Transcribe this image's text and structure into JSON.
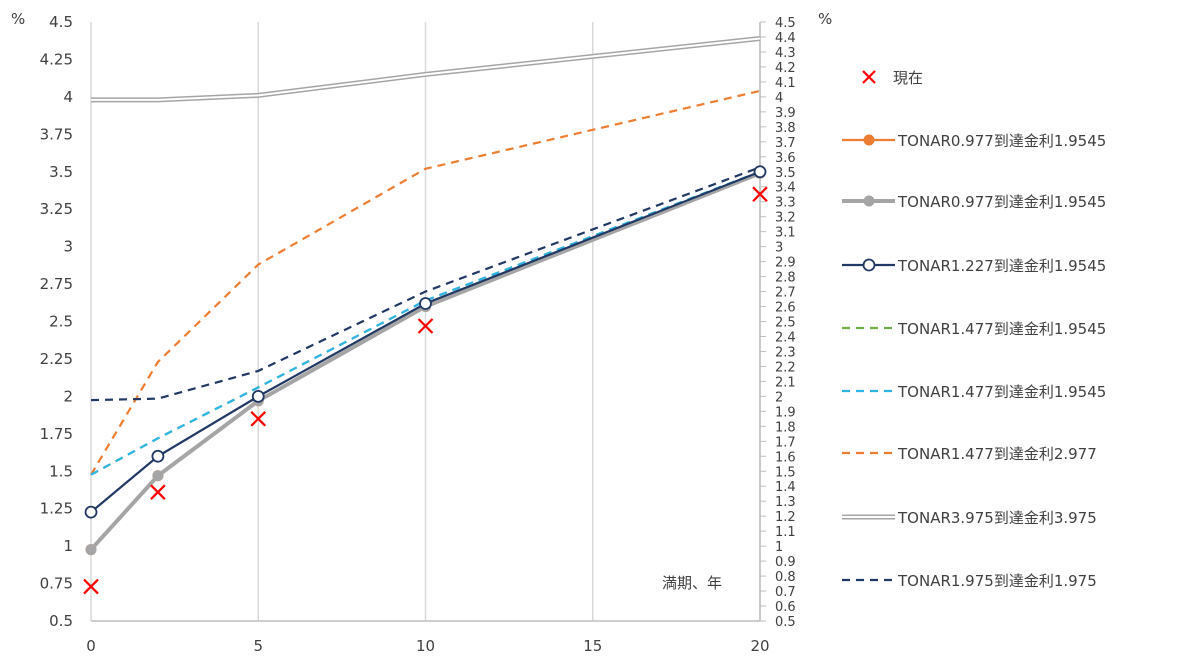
{
  "chart_data": {
    "type": "line",
    "left_unit": "%",
    "right_unit": "%",
    "x_note": "満期、年",
    "xlim": [
      0,
      20
    ],
    "ylim": [
      0.5,
      4.5
    ],
    "x_ticks": [
      0,
      5,
      10,
      15,
      20
    ],
    "x_tick_labels": [
      "0",
      "5",
      "10",
      "15",
      "20"
    ],
    "y_left_ticks": [
      "0.5",
      "0.75",
      "1",
      "1.25",
      "1.5",
      "1.75",
      "2",
      "2.25",
      "2.5",
      "2.75",
      "3",
      "3.25",
      "3.5",
      "3.75",
      "4",
      "4.25",
      "4.5"
    ],
    "y_right_ticks": [
      "0.5",
      "0.6",
      "0.7",
      "0.8",
      "0.9",
      "1",
      "1.1",
      "1.2",
      "1.3",
      "1.4",
      "1.5",
      "1.6",
      "1.7",
      "1.8",
      "1.9",
      "2",
      "2.1",
      "2.2",
      "2.3",
      "2.4",
      "2.5",
      "2.6",
      "2.7",
      "2.8",
      "2.9",
      "3",
      "3.1",
      "3.2",
      "3.3",
      "3.4",
      "3.5",
      "3.6",
      "3.7",
      "3.8",
      "3.9",
      "4",
      "4.1",
      "4.2",
      "4.3",
      "4.4",
      "4.5"
    ],
    "grid": "vertical",
    "legend_position": "right",
    "series": [
      {
        "name": "現在",
        "style": "marker-x",
        "color": "#ff0000",
        "x": [
          0,
          2,
          5,
          10,
          20
        ],
        "y": [
          0.73,
          1.36,
          1.85,
          2.47,
          3.35
        ]
      },
      {
        "name": "TONAR0.977到達金利1.9545",
        "style": "solid-dot",
        "color": "#ed7d31",
        "x": [
          0,
          2,
          5,
          10,
          20
        ],
        "y": [
          0.977,
          1.47,
          1.97,
          2.6,
          3.49
        ]
      },
      {
        "name": "TONAR0.977到達金利1.9545",
        "style": "solid-dot-thick",
        "color": "#a5a5a5",
        "x": [
          0,
          2,
          5,
          10,
          20
        ],
        "y": [
          0.977,
          1.47,
          1.97,
          2.6,
          3.49
        ]
      },
      {
        "name": "TONAR1.227到達金利1.9545",
        "style": "solid-open-circle",
        "color": "#203864",
        "x": [
          0,
          2,
          5,
          10,
          20
        ],
        "y": [
          1.227,
          1.6,
          2.0,
          2.62,
          3.5
        ]
      },
      {
        "name": "TONAR1.477到達金利1.9545",
        "style": "dashed",
        "color": "#70ad47",
        "x": [
          0,
          2,
          5,
          10,
          20
        ],
        "y": [
          1.477,
          1.72,
          2.06,
          2.64,
          3.5
        ]
      },
      {
        "name": "TONAR1.477到達金利1.9545",
        "style": "dashed",
        "color": "#2eb5e8",
        "x": [
          0,
          2,
          5,
          10,
          20
        ],
        "y": [
          1.477,
          1.72,
          2.06,
          2.64,
          3.5
        ]
      },
      {
        "name": "TONAR1.477到達金利2.977",
        "style": "dashed",
        "color": "#ed7d31",
        "x": [
          0,
          2,
          5,
          10,
          20
        ],
        "y": [
          1.477,
          2.23,
          2.88,
          3.52,
          4.04
        ]
      },
      {
        "name": "TONAR3.975到達金利3.975",
        "style": "double",
        "color": "#a5a5a5",
        "x": [
          0,
          2,
          5,
          10,
          20
        ],
        "y": [
          3.98,
          3.98,
          4.01,
          4.15,
          4.39
        ]
      },
      {
        "name": "TONAR1.975到達金利1.975",
        "style": "dashed",
        "color": "#203864",
        "x": [
          0,
          2,
          5,
          10,
          20
        ],
        "y": [
          1.975,
          1.985,
          2.17,
          2.7,
          3.53
        ]
      }
    ]
  }
}
